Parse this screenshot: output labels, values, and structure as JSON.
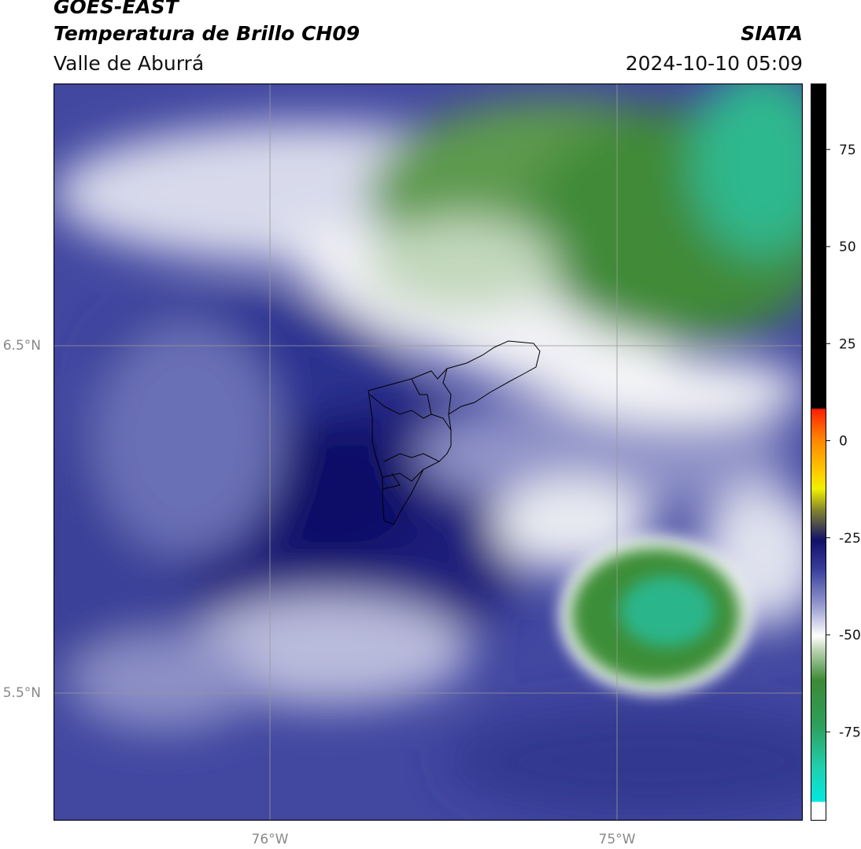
{
  "header": {
    "title": "GOES-EAST",
    "subtitle": "Temperatura de Brillo CH09",
    "region": "Valle de Aburrá",
    "source": "SIATA",
    "datetime": "2024-10-10 05:09"
  },
  "map": {
    "lat_labels": [
      "6.5°N",
      "5.5°N"
    ],
    "lon_labels": [
      "76°W",
      "75°W"
    ]
  },
  "colorbar": {
    "clim": [
      -93,
      92
    ],
    "ticks": [
      75,
      50,
      25,
      0,
      -25,
      -50,
      -75
    ]
  }
}
